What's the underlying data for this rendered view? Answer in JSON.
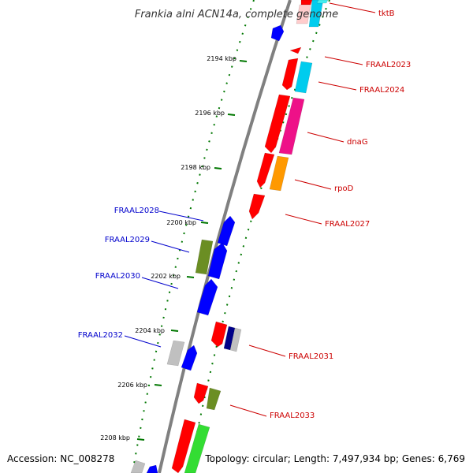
{
  "title": "Frankia alni ACN14a, complete genome",
  "accession": "Accession: NC_008278",
  "topology": "Topology: circular; Length: 7,497,934 bp; Genes: 6,769",
  "ticks": [
    "2194 kbp",
    "2196 kbp",
    "2198 kbp",
    "2200 kbp",
    "2202 kbp",
    "2204 kbp",
    "2206 kbp",
    "2208 kbp"
  ],
  "labels_forward": [
    "tktB",
    "FRAAL2023",
    "FRAAL2024",
    "dnaG",
    "rpoD",
    "FRAAL2027",
    "FRAAL2031",
    "FRAAL2033"
  ],
  "labels_reverse": [
    "FRAAL2028",
    "FRAAL2029",
    "FRAAL2030",
    "FRAAL2032"
  ],
  "colors": {
    "backbone": "#808080",
    "forward_label": "#cc0000",
    "reverse_label": "#0000cc",
    "tick": "#007700",
    "red": "#ff0000",
    "blue": "#0000ff",
    "olive": "#6b8e23",
    "cyan": "#00ccee",
    "magenta": "#ee1188",
    "orange": "#ff9900",
    "gray": "#c0c0c0",
    "green": "#33dd33",
    "navy": "#000088",
    "turquoise": "#44eeee"
  }
}
